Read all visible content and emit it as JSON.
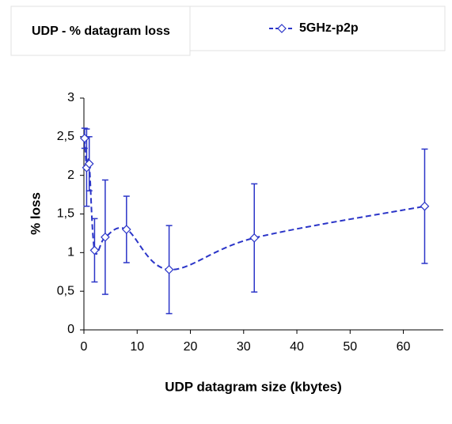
{
  "chart_data": {
    "type": "line",
    "title": "UDP - % datagram loss",
    "x_label": "UDP datagram size (kbytes)",
    "y_label": "% loss",
    "x": [
      0.128,
      0.512,
      1,
      2,
      4,
      8,
      16,
      32,
      64
    ],
    "series": [
      {
        "name": "5GHz-p2p",
        "color": "#2b35c8",
        "values": [
          2.48,
          2.1,
          2.15,
          1.03,
          1.2,
          1.3,
          0.78,
          1.19,
          1.6
        ],
        "errors": [
          0.13,
          0.5,
          0.35,
          0.41,
          0.74,
          0.43,
          0.57,
          0.7,
          0.74
        ]
      }
    ],
    "xlim": [
      0,
      67.5
    ],
    "xticks": [
      0,
      10,
      20,
      30,
      40,
      50,
      60
    ],
    "ylim": [
      0,
      3
    ],
    "yticks": [
      0,
      {
        "value": 0.5,
        "label": "0,5"
      },
      1,
      {
        "value": 1.5,
        "label": "1,5"
      },
      2,
      {
        "value": 2.5,
        "label": "2,5"
      },
      3
    ],
    "grid": false
  }
}
